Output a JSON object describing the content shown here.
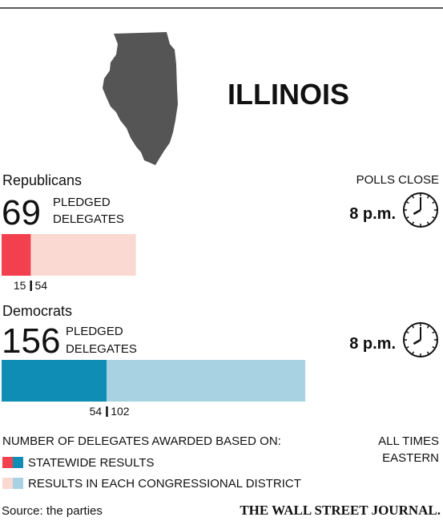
{
  "title": "ILLINOIS",
  "polls_close_label": "POLLS CLOSE",
  "parties": [
    {
      "name": "Republicans",
      "total": 69,
      "total_label": [
        "PLEDGED",
        "DELEGATES"
      ],
      "poll_time": "8 p.m.",
      "segments": [
        {
          "value": 15,
          "color": "#f2404f"
        },
        {
          "value": 54,
          "color": "#fbd9d3"
        }
      ]
    },
    {
      "name": "Democrats",
      "total": 156,
      "total_label": [
        "PLEDGED",
        "DELEGATES"
      ],
      "poll_time": "8 p.m.",
      "segments": [
        {
          "value": 54,
          "color": "#0f8db4"
        },
        {
          "value": 102,
          "color": "#a8d2e2"
        }
      ]
    }
  ],
  "legend": {
    "heading": "NUMBER OF DELEGATES AWARDED BASED ON:",
    "entries": [
      "STATEWIDE RESULTS",
      "RESULTS IN EACH CONGRESSIONAL DISTRICT"
    ]
  },
  "time_note": [
    "ALL TIMES",
    "EASTERN"
  ],
  "source": "Source: the parties",
  "publisher": "THE WALL STREET JOURNAL."
}
